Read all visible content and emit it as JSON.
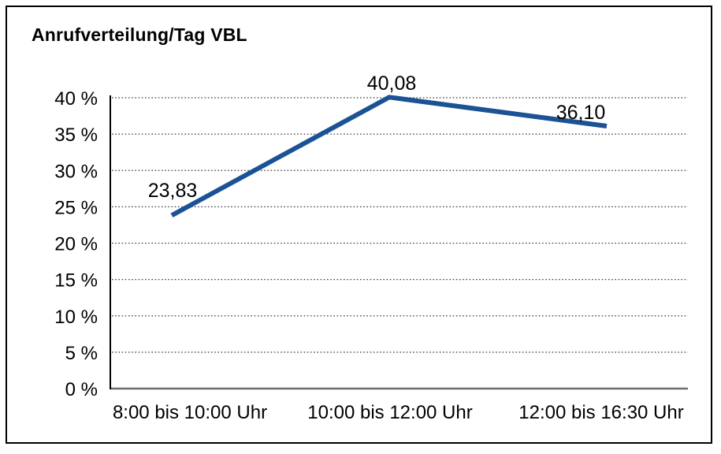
{
  "chart": {
    "title": "Anrufverteilung/Tag VBL"
  },
  "chart_data": {
    "type": "line",
    "title": "Anrufverteilung/Tag VBL",
    "categories": [
      "8:00 bis 10:00 Uhr",
      "10:00 bis 12:00 Uhr",
      "12:00 bis 16:30 Uhr"
    ],
    "values": [
      23.83,
      40.08,
      36.1
    ],
    "value_labels": [
      "23,83",
      "40,08",
      "36,10"
    ],
    "xlabel": "",
    "ylabel": "",
    "ylim": [
      0,
      40
    ],
    "y_tick_values": [
      0,
      5,
      10,
      15,
      20,
      25,
      30,
      35,
      40
    ],
    "y_tick_labels": [
      "0 %",
      "5 %",
      "10 %",
      "15 %",
      "20 %",
      "25 %",
      "30 %",
      "35 %",
      "40 %"
    ],
    "grid": "horizontal dotted",
    "legend": "none",
    "markers": "none"
  },
  "colors": {
    "line": "#1B5296",
    "grid_dots": "#3d3d3d",
    "axis": "#000000",
    "baseline": "#6e6e6e",
    "border": "#000000",
    "background": "#FFFFFF",
    "text": "#000000"
  }
}
